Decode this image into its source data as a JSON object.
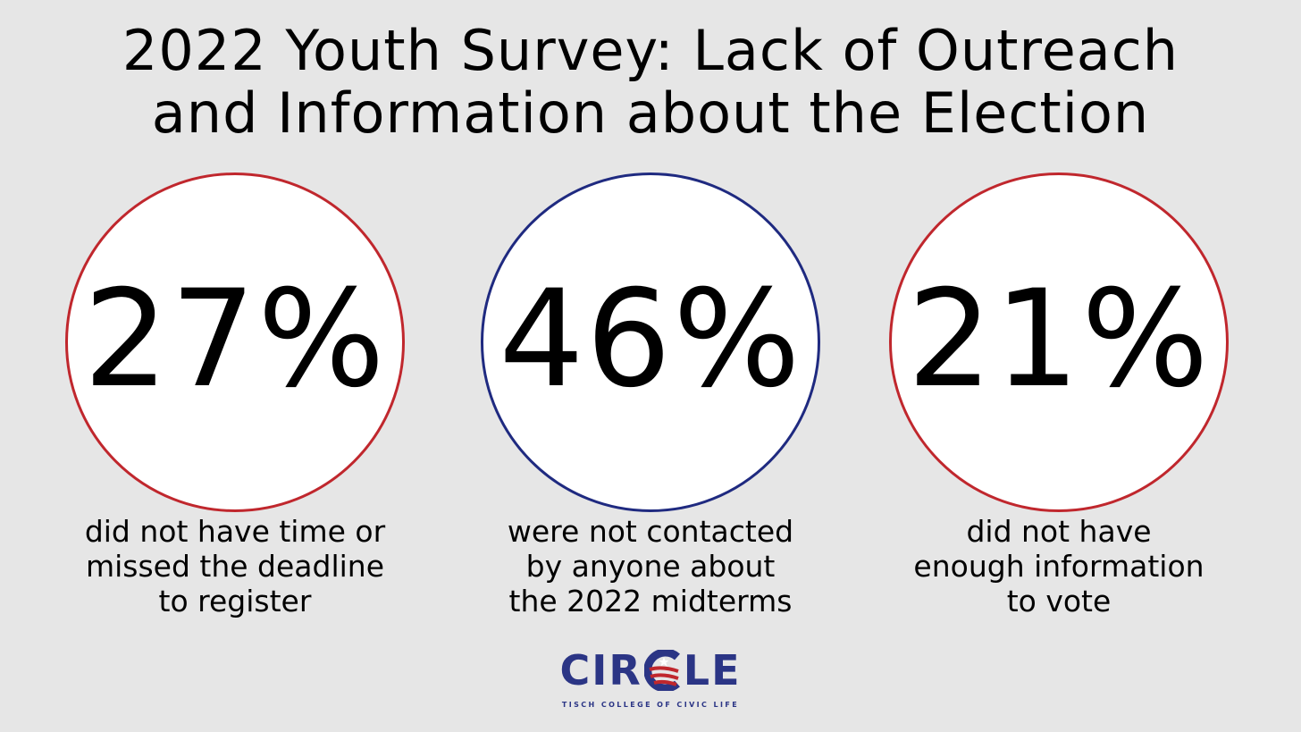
{
  "title": {
    "line1": "2022 Youth Survey: Lack of Outreach",
    "line2": "and Information about the Election"
  },
  "stats": [
    {
      "value": "27%",
      "ring_color": "#c0272d",
      "caption": [
        "did not have time or",
        "missed the deadline",
        "to register"
      ]
    },
    {
      "value": "46%",
      "ring_color": "#1f2a80",
      "caption": [
        "were not contacted",
        "by anyone about",
        "the 2022 midterms"
      ]
    },
    {
      "value": "21%",
      "ring_color": "#c0272d",
      "caption": [
        "did not have",
        "enough information",
        "to vote"
      ]
    }
  ],
  "logo": {
    "word_left": "CIR",
    "word_right": "LE",
    "subtitle": "TISCH COLLEGE OF CIVIC LIFE",
    "brand_blue": "#2b3585",
    "brand_red": "#c0272d"
  },
  "background": "#e6e6e6"
}
